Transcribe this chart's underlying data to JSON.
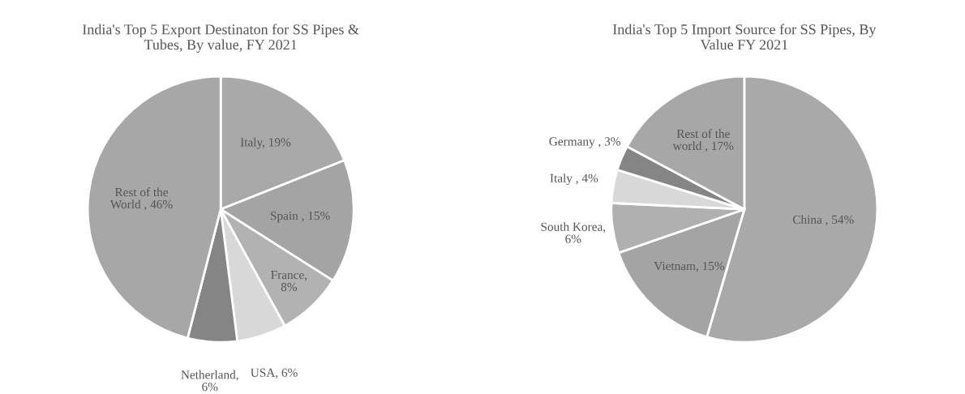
{
  "chart_data": [
    {
      "type": "pie",
      "title": "India's Top 5 Export Destinaton for SS Pipes & Tubes, By value, FY 2021",
      "categories": [
        "Italy, 19%",
        "Spain , 15%",
        "France, 8%",
        "USA, 6%",
        "Netherland, 6%",
        "Rest of the World , 46%"
      ],
      "values": [
        19,
        15,
        8,
        6,
        6,
        46
      ],
      "colors": [
        "#a9a9a9",
        "#a4a4a4",
        "#b2b2b2",
        "#d8d8d8",
        "#858585",
        "#a7a7a7"
      ]
    },
    {
      "type": "pie",
      "title": "India's Top 5 Import Source for SS Pipes, By Value FY 2021",
      "categories": [
        "China , 54%",
        "Vietnam, 15%",
        "South Korea, 6%",
        "Italy , 4%",
        "Germany , 3%",
        "Rest of the world , 17%"
      ],
      "values": [
        54,
        15,
        6,
        4,
        3,
        17
      ],
      "colors": [
        "#a9a9a9",
        "#a4a4a4",
        "#b0b0b0",
        "#d8d8d8",
        "#858585",
        "#a7a7a7"
      ]
    }
  ]
}
